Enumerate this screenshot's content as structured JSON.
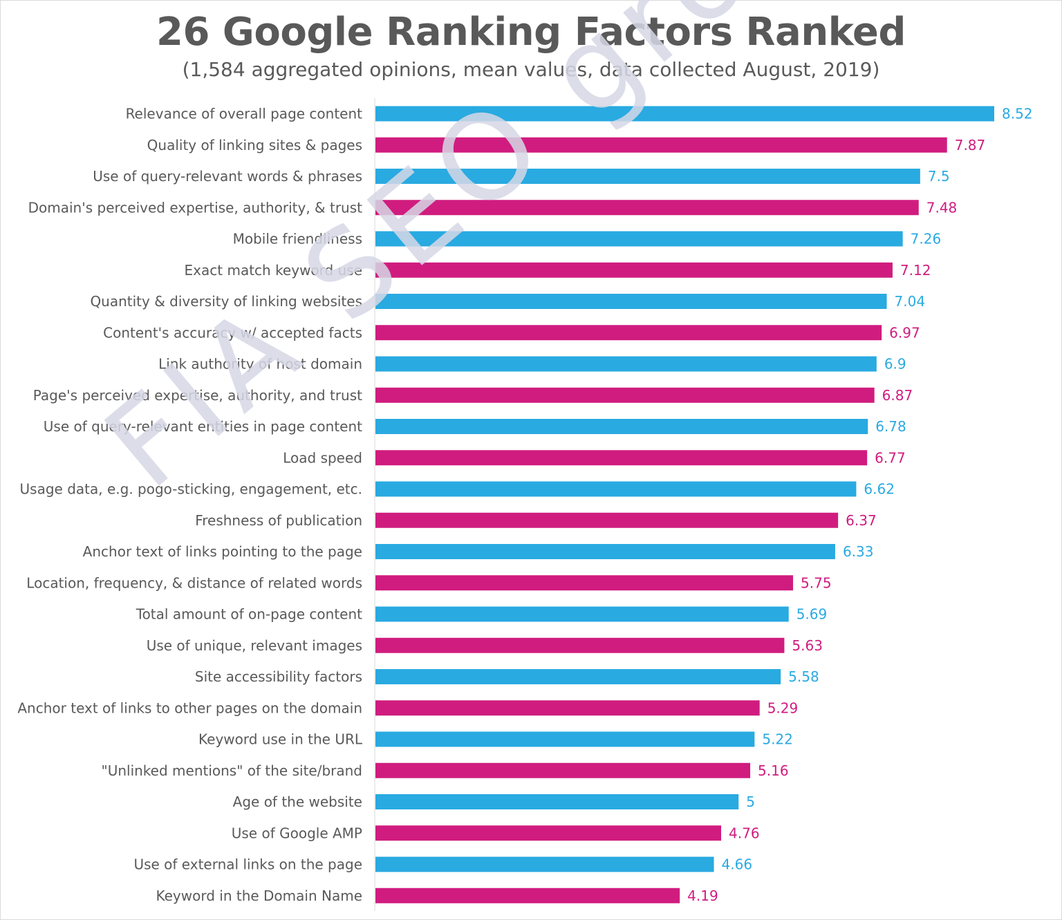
{
  "chart_data": {
    "type": "bar",
    "orientation": "horizontal",
    "title": "26 Google Ranking Factors Ranked",
    "subtitle": "(1,584 aggregated opinions, mean values, data collected August, 2019)",
    "xlim": [
      0,
      8.52
    ],
    "grid": false,
    "legend": "none",
    "categories": [
      "Relevance of overall page content",
      "Quality of linking sites & pages",
      "Use of query-relevant words & phrases",
      "Domain's perceived expertise, authority, & trust",
      "Mobile friendliness",
      "Exact match keyword use",
      "Quantity & diversity of linking websites",
      "Content's accuracy w/ accepted facts",
      "Link authority of host domain",
      "Page's perceived expertise, authority, and trust",
      "Use of query-relevant entities in page content",
      "Load speed",
      "Usage data, e.g. pogo-sticking, engagement, etc.",
      "Freshness of publication",
      "Anchor text of links pointing to the page",
      "Location, frequency, & distance of related words",
      "Total amount of on-page content",
      "Use of unique, relevant images",
      "Site accessibility factors",
      "Anchor text of links to other pages on the domain",
      "Keyword use in the URL",
      "\"Unlinked mentions\" of the site/brand",
      "Age of the website",
      "Use of Google AMP",
      "Use of external links on the page",
      "Keyword in the Domain Name"
    ],
    "values": [
      8.52,
      7.87,
      7.5,
      7.48,
      7.26,
      7.12,
      7.04,
      6.97,
      6.9,
      6.87,
      6.78,
      6.77,
      6.62,
      6.37,
      6.33,
      5.75,
      5.69,
      5.63,
      5.58,
      5.29,
      5.22,
      5.16,
      5,
      4.76,
      4.66,
      4.19
    ],
    "value_labels": [
      "8.52",
      "7.87",
      "7.5",
      "7.48",
      "7.26",
      "7.12",
      "7.04",
      "6.97",
      "6.9",
      "6.87",
      "6.78",
      "6.77",
      "6.62",
      "6.37",
      "6.33",
      "5.75",
      "5.69",
      "5.63",
      "5.58",
      "5.29",
      "5.22",
      "5.16",
      "5",
      "4.76",
      "4.66",
      "4.19"
    ],
    "colors": [
      "#29aae1",
      "#d01c7f"
    ],
    "axis_color": "#d9d9d9",
    "label_color": "#595959"
  },
  "watermark": "FIA SEO group"
}
